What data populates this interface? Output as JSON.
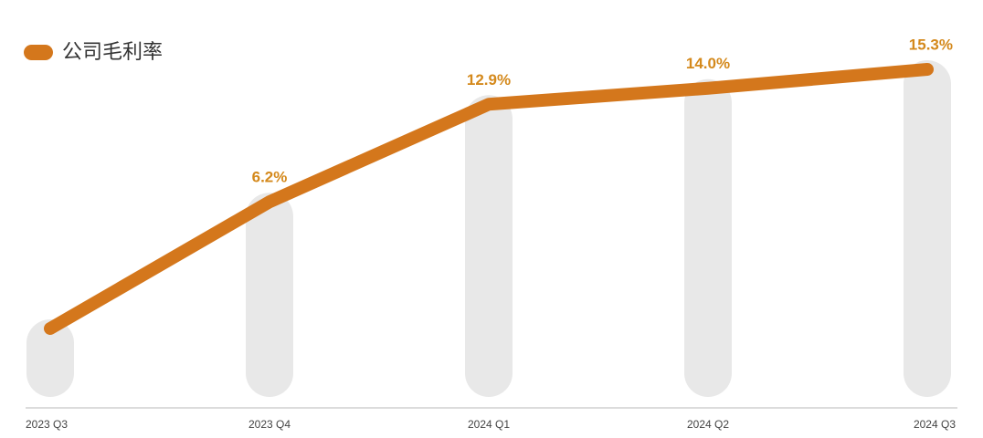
{
  "chart_data": {
    "type": "line",
    "categories": [
      "2023 Q3",
      "2023 Q4",
      "2024 Q1",
      "2024 Q2",
      "2024 Q3"
    ],
    "series": [
      {
        "name": "公司毛利率",
        "color": "#d4771c",
        "values": [
          -2.5,
          6.2,
          12.9,
          14.0,
          15.3
        ],
        "value_labels": [
          null,
          "6.2%",
          "12.9%",
          "14.0%",
          "15.3%"
        ]
      }
    ]
  }
}
